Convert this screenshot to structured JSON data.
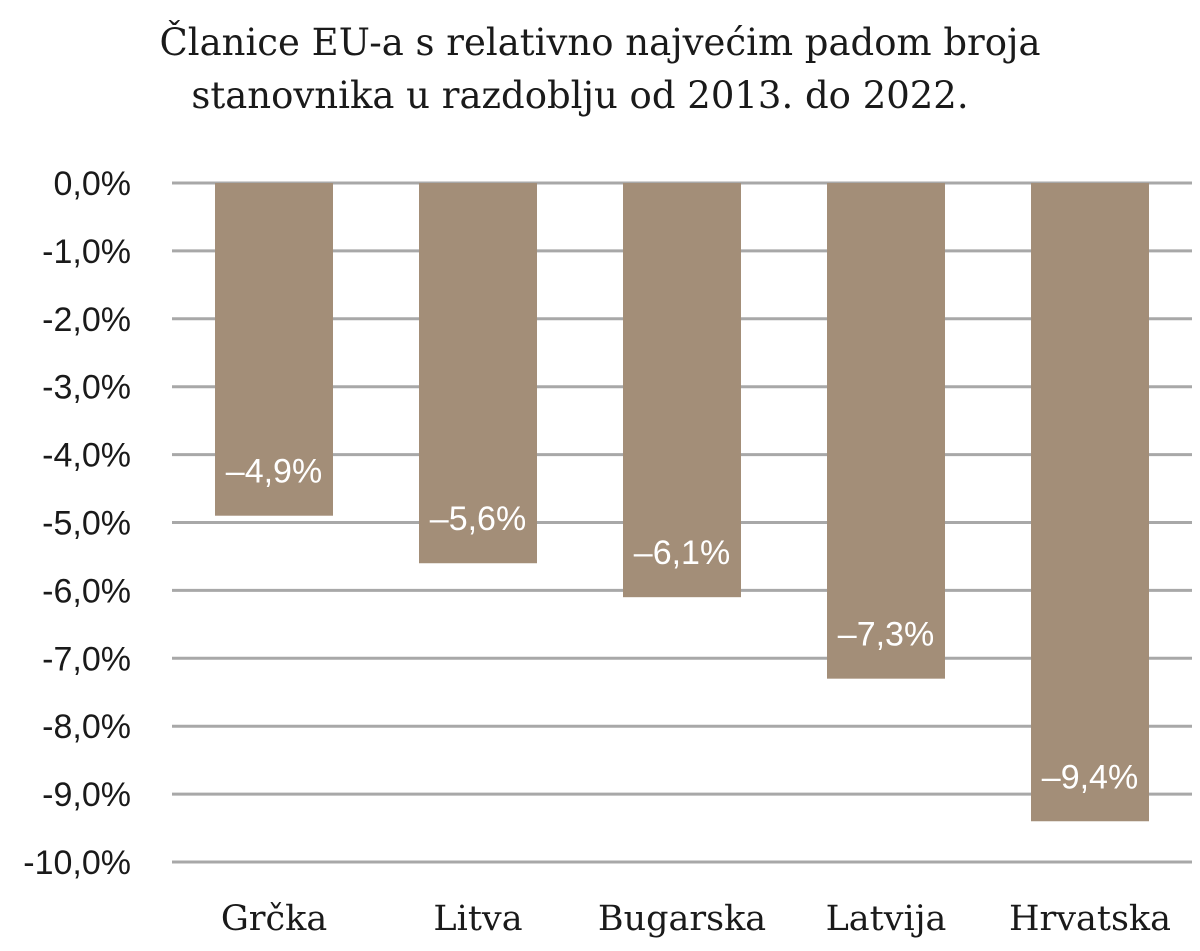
{
  "chart_data": {
    "type": "bar",
    "title_lines": [
      "Članice EU-a s relativno najvećim padom broja",
      "stanovnika u razdoblju od 2013. do 2022."
    ],
    "categories": [
      "Grčka",
      "Litva",
      "Bugarska",
      "Latvija",
      "Hrvatska"
    ],
    "values": [
      -4.9,
      -5.6,
      -6.1,
      -7.3,
      -9.4
    ],
    "data_labels": [
      "–4,9%",
      "–5,6%",
      "–6,1%",
      "–7,3%",
      "–9,4%"
    ],
    "y_ticks": [
      0,
      -1,
      -2,
      -3,
      -4,
      -5,
      -6,
      -7,
      -8,
      -9,
      -10
    ],
    "y_tick_labels": [
      "0,0%",
      "-1,0%",
      "-2,0%",
      "-3,0%",
      "-4,0%",
      "-5,0%",
      "-6,0%",
      "-7,0%",
      "-8,0%",
      "-9,0%",
      "-10,0%"
    ],
    "ylim": [
      -10,
      0
    ],
    "grid": true,
    "legend": "none",
    "colors": {
      "bar": "#a38e78",
      "grid": "#a8a8a8",
      "data_label": "#ffffff"
    }
  }
}
